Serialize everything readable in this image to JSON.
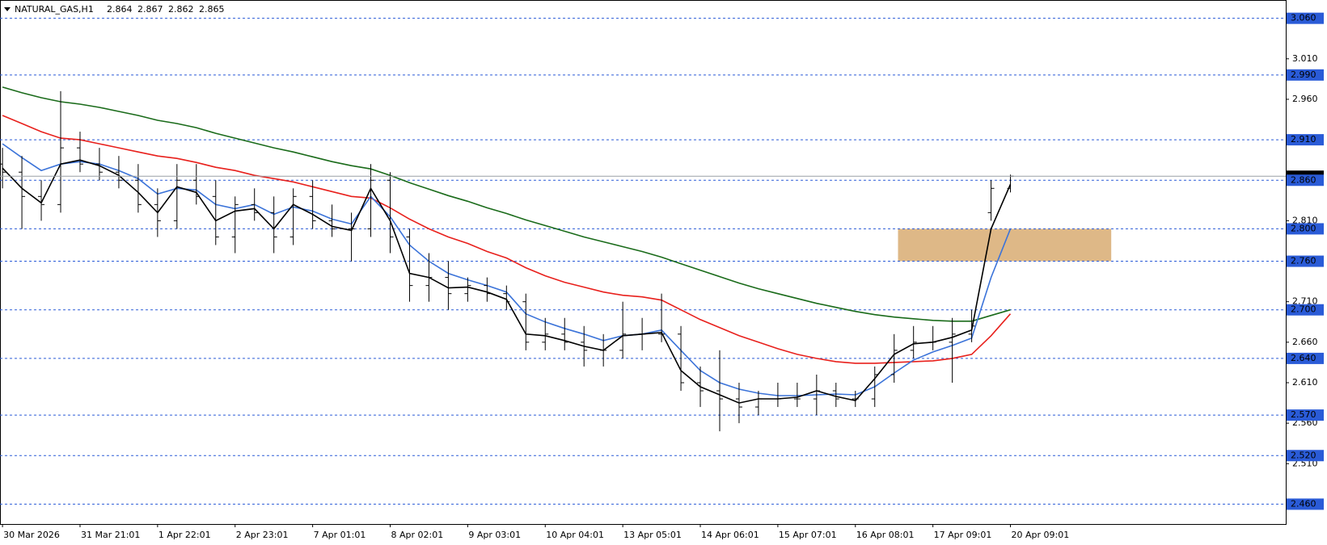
{
  "chart_data": {
    "type": "ohlc",
    "symbol": "NATURAL_GAS,H1",
    "quote": {
      "open": 2.864,
      "high": 2.867,
      "low": 2.862,
      "close": 2.865
    },
    "categories": [
      "30 Mar 2026",
      null,
      null,
      null,
      "31 Mar 21:01",
      null,
      null,
      null,
      "1 Apr 22:01",
      null,
      null,
      null,
      "2 Apr 23:01",
      null,
      null,
      null,
      "7 Apr 01:01",
      null,
      null,
      null,
      "8 Apr 02:01",
      null,
      null,
      null,
      "9 Apr 03:01",
      null,
      null,
      null,
      "10 Apr 04:01",
      null,
      null,
      null,
      "13 Apr 05:01",
      null,
      null,
      null,
      "14 Apr 06:01",
      null,
      null,
      null,
      "15 Apr 07:01",
      null,
      null,
      null,
      "16 Apr 08:01",
      null,
      null,
      null,
      "17 Apr 09:01",
      null,
      null,
      null,
      "20 Apr 09:01"
    ],
    "open": [
      2.88,
      2.87,
      2.84,
      2.83,
      2.9,
      2.88,
      2.87,
      2.86,
      2.83,
      2.81,
      2.86,
      2.84,
      2.79,
      2.83,
      2.82,
      2.79,
      2.84,
      2.81,
      2.8,
      2.8,
      2.86,
      2.79,
      2.73,
      2.74,
      2.72,
      2.73,
      2.72,
      2.71,
      2.66,
      2.67,
      2.66,
      2.65,
      2.65,
      2.67,
      2.67,
      2.67,
      2.61,
      2.6,
      2.59,
      2.58,
      2.59,
      2.59,
      2.59,
      2.6,
      2.59,
      2.59,
      2.62,
      2.65,
      2.66,
      2.66,
      2.67,
      2.82,
      2.85
    ],
    "high": [
      2.9,
      2.89,
      2.86,
      2.97,
      2.92,
      2.9,
      2.89,
      2.88,
      2.85,
      2.88,
      2.88,
      2.86,
      2.84,
      2.85,
      2.84,
      2.85,
      2.86,
      2.83,
      2.82,
      2.88,
      2.87,
      2.8,
      2.77,
      2.76,
      2.74,
      2.74,
      2.73,
      2.72,
      2.69,
      2.69,
      2.68,
      2.67,
      2.71,
      2.69,
      2.72,
      2.68,
      2.63,
      2.65,
      2.61,
      2.6,
      2.61,
      2.61,
      2.62,
      2.61,
      2.6,
      2.63,
      2.67,
      2.68,
      2.68,
      2.69,
      2.7,
      2.86,
      2.867
    ],
    "low": [
      2.85,
      2.8,
      2.81,
      2.82,
      2.87,
      2.86,
      2.85,
      2.82,
      2.79,
      2.8,
      2.83,
      2.78,
      2.77,
      2.81,
      2.77,
      2.78,
      2.8,
      2.79,
      2.76,
      2.79,
      2.77,
      2.71,
      2.71,
      2.7,
      2.71,
      2.71,
      2.7,
      2.65,
      2.65,
      2.65,
      2.63,
      2.63,
      2.64,
      2.65,
      2.66,
      2.6,
      2.58,
      2.55,
      2.56,
      2.57,
      2.58,
      2.58,
      2.57,
      2.58,
      2.58,
      2.58,
      2.61,
      2.64,
      2.65,
      2.61,
      2.66,
      2.81,
      2.845
    ],
    "close": [
      2.87,
      2.84,
      2.83,
      2.9,
      2.88,
      2.87,
      2.86,
      2.83,
      2.81,
      2.86,
      2.84,
      2.79,
      2.83,
      2.82,
      2.79,
      2.84,
      2.81,
      2.8,
      2.8,
      2.86,
      2.79,
      2.73,
      2.74,
      2.72,
      2.73,
      2.72,
      2.71,
      2.66,
      2.67,
      2.66,
      2.65,
      2.65,
      2.67,
      2.67,
      2.67,
      2.61,
      2.6,
      2.59,
      2.58,
      2.59,
      2.59,
      2.59,
      2.6,
      2.59,
      2.59,
      2.62,
      2.65,
      2.66,
      2.66,
      2.67,
      2.68,
      2.85,
      2.865
    ],
    "candle_color": "#000000",
    "series": [
      {
        "color": "#1a6b1a",
        "values": [
          2.975,
          2.968,
          2.962,
          2.957,
          2.954,
          2.95,
          2.945,
          2.94,
          2.934,
          2.93,
          2.925,
          2.918,
          2.912,
          2.906,
          2.9,
          2.895,
          2.889,
          2.883,
          2.878,
          2.874,
          2.866,
          2.857,
          2.849,
          2.841,
          2.834,
          2.826,
          2.819,
          2.811,
          2.804,
          2.797,
          2.79,
          2.784,
          2.778,
          2.772,
          2.765,
          2.757,
          2.749,
          2.741,
          2.733,
          2.726,
          2.72,
          2.714,
          2.708,
          2.703,
          2.698,
          2.694,
          2.691,
          2.689,
          2.687,
          2.686,
          2.686,
          2.693,
          2.7
        ]
      },
      {
        "color": "#e8201c",
        "values": [
          2.94,
          2.93,
          2.92,
          2.912,
          2.91,
          2.905,
          2.9,
          2.895,
          2.89,
          2.887,
          2.882,
          2.876,
          2.872,
          2.866,
          2.862,
          2.858,
          2.852,
          2.846,
          2.84,
          2.838,
          2.826,
          2.812,
          2.8,
          2.79,
          2.782,
          2.772,
          2.764,
          2.752,
          2.742,
          2.734,
          2.728,
          2.722,
          2.718,
          2.716,
          2.712,
          2.7,
          2.688,
          2.678,
          2.668,
          2.66,
          2.652,
          2.645,
          2.64,
          2.636,
          2.634,
          2.634,
          2.635,
          2.636,
          2.637,
          2.64,
          2.645,
          2.668,
          2.695
        ]
      },
      {
        "color": "#3b73d9",
        "values": [
          2.905,
          2.888,
          2.872,
          2.88,
          2.883,
          2.88,
          2.872,
          2.862,
          2.843,
          2.85,
          2.848,
          2.83,
          2.825,
          2.83,
          2.818,
          2.827,
          2.822,
          2.812,
          2.806,
          2.84,
          2.815,
          2.78,
          2.76,
          2.745,
          2.737,
          2.73,
          2.722,
          2.695,
          2.685,
          2.677,
          2.67,
          2.662,
          2.668,
          2.67,
          2.675,
          2.65,
          2.625,
          2.61,
          2.602,
          2.597,
          2.594,
          2.594,
          2.595,
          2.596,
          2.595,
          2.605,
          2.622,
          2.638,
          2.648,
          2.656,
          2.665,
          2.74,
          2.8
        ]
      },
      {
        "color": "#000000",
        "values": [
          2.875,
          2.85,
          2.832,
          2.88,
          2.885,
          2.878,
          2.866,
          2.845,
          2.82,
          2.852,
          2.845,
          2.81,
          2.822,
          2.825,
          2.8,
          2.83,
          2.818,
          2.803,
          2.798,
          2.85,
          2.81,
          2.745,
          2.74,
          2.727,
          2.728,
          2.722,
          2.713,
          2.67,
          2.668,
          2.662,
          2.655,
          2.65,
          2.668,
          2.67,
          2.672,
          2.625,
          2.605,
          2.595,
          2.585,
          2.59,
          2.59,
          2.592,
          2.6,
          2.593,
          2.588,
          2.615,
          2.645,
          2.658,
          2.66,
          2.666,
          2.675,
          2.8,
          2.855
        ]
      }
    ],
    "ylim": [
      2.4355,
      3.0826
    ],
    "yticks": [
      {
        "value": 3.01,
        "label": "3.010"
      },
      {
        "value": 2.96,
        "label": "2.960"
      },
      {
        "value": 2.81,
        "label": "2.810"
      },
      {
        "value": 2.71,
        "label": "2.710"
      },
      {
        "value": 2.66,
        "label": "2.660"
      },
      {
        "value": 2.61,
        "label": "2.610"
      },
      {
        "value": 2.56,
        "label": "2.560"
      },
      {
        "value": 2.51,
        "label": "2.510"
      }
    ],
    "levels": [
      {
        "value": 3.06,
        "label": "3.060"
      },
      {
        "value": 2.99,
        "label": "2.990"
      },
      {
        "value": 2.91,
        "label": "2.910"
      },
      {
        "value": 2.86,
        "label": "2.860"
      },
      {
        "value": 2.8,
        "label": "2.800"
      },
      {
        "value": 2.76,
        "label": "2.760"
      },
      {
        "value": 2.7,
        "label": "2.700"
      },
      {
        "value": 2.64,
        "label": "2.640"
      },
      {
        "value": 2.57,
        "label": "2.570"
      },
      {
        "value": 2.52,
        "label": "2.520"
      },
      {
        "value": 2.46,
        "label": "2.460"
      }
    ],
    "level_color": "#2a5bd7",
    "zone": {
      "xlim": [
        46.2,
        57.2
      ],
      "ylim": [
        2.76,
        2.8
      ],
      "color": "#deb887"
    }
  }
}
